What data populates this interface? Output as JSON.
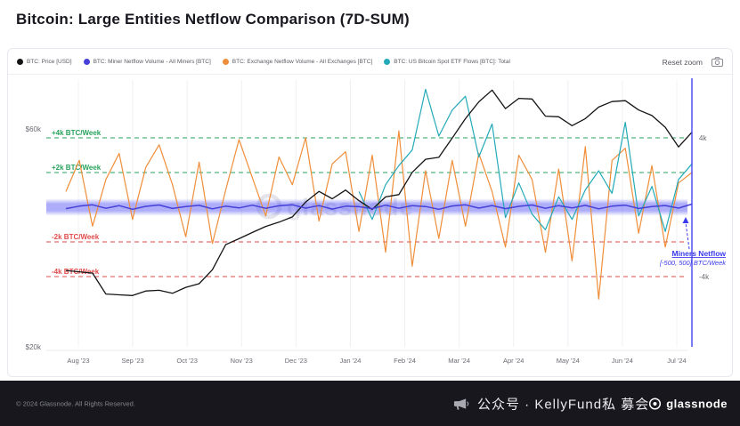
{
  "page": {
    "title": "Bitcoin: Large Entities Netflow Comparison (7D-SUM)"
  },
  "toolbar": {
    "reset_zoom": "Reset zoom"
  },
  "legend": {
    "items": [
      {
        "label": "BTC: Price [USD]",
        "color": "#141414"
      },
      {
        "label": "BTC: Miner Netflow Volume - All Miners [BTC]",
        "color": "#4640d8"
      },
      {
        "label": "BTC: Exchange Netflow Volume - All Exchanges [BTC]",
        "color": "#ef8e3a"
      },
      {
        "label": "BTC: US Bitcoin Spot ETF Flows [BTC]: Total",
        "color": "#23aab8"
      }
    ]
  },
  "watermark": {
    "text": "glassnode"
  },
  "footer": {
    "copyright": "© 2024 Glassnode. All Rights Reserved.",
    "channel": "公众号 · KellyFund私 募会",
    "brand": "glassnode"
  },
  "chart_data": {
    "type": "line",
    "title": "Bitcoin: Large Entities Netflow Comparison (7D-SUM)",
    "x_ticks": [
      "Aug '23",
      "Sep '23",
      "Oct '23",
      "Nov '23",
      "Dec '23",
      "Jan '24",
      "Feb '24",
      "Mar '24",
      "Apr '24",
      "May '24",
      "Jun '24",
      "Jul '24"
    ],
    "left_axis": {
      "scale": "log",
      "unit": "USD",
      "ticks": [
        {
          "label": "$60k",
          "value": 60000
        },
        {
          "label": "$20k",
          "value": 20000
        }
      ]
    },
    "right_axis": {
      "unit": "BTC/Week",
      "ticks": [
        {
          "label": "4k",
          "value": 4000
        },
        {
          "label": "-4k",
          "value": -4000
        }
      ]
    },
    "reference_lines": [
      {
        "label": "+4k BTC/Week",
        "value": 4000,
        "color": "#27a35c"
      },
      {
        "label": "+2k BTC/Week",
        "value": 2000,
        "color": "#27a35c"
      },
      {
        "label": "-2k BTC/Week",
        "value": -2000,
        "color": "#e14b4b"
      },
      {
        "label": "-4k BTC/Week",
        "value": -4000,
        "color": "#e14b4b"
      }
    ],
    "band": {
      "min": -500,
      "max": 500,
      "color": "#5b5bf5"
    },
    "annotation": {
      "line1": "Miners Netflow",
      "line2": "[-500, 500] BTC/Week",
      "color": "#3b3bec"
    },
    "crosshair_color": "#4444f0",
    "series": [
      {
        "name": "BTC: Price [USD]",
        "axis": "left",
        "color": "#141414",
        "values": [
          29400,
          29200,
          29000,
          26100,
          26000,
          25900,
          26500,
          26600,
          26200,
          27000,
          27500,
          29500,
          33500,
          34500,
          35600,
          36700,
          37500,
          38500,
          41500,
          43800,
          42200,
          44100,
          41800,
          40000,
          42600,
          43100,
          48200,
          51500,
          52000,
          57300,
          63200,
          68800,
          73000,
          66500,
          70000,
          69800,
          64000,
          63800,
          61000,
          63200,
          67000,
          68900,
          69200,
          66000,
          64200,
          60500,
          54800,
          59000
        ]
      },
      {
        "name": "BTC: Miner Netflow Volume - All Miners [BTC]",
        "axis": "right",
        "color": "#4640d8",
        "values": [
          -80,
          60,
          140,
          -60,
          90,
          -120,
          50,
          130,
          -70,
          40,
          110,
          -90,
          60,
          -40,
          120,
          -60,
          80,
          140,
          -50,
          90,
          -110,
          60,
          30,
          -80,
          120,
          -60,
          90,
          40,
          -120,
          70,
          140,
          -50,
          100,
          -80,
          50,
          130,
          -60,
          90,
          -40,
          110,
          -90,
          60,
          120,
          -70,
          40,
          100,
          -50,
          180
        ]
      },
      {
        "name": "BTC: Exchange Netflow Volume - All Exchanges [BTC]",
        "axis": "right",
        "color": "#ef8e3a",
        "values": [
          900,
          2700,
          -1100,
          1600,
          3100,
          -700,
          2300,
          3600,
          1300,
          -1700,
          2600,
          -2100,
          1000,
          3900,
          1700,
          -500,
          2900,
          1300,
          4000,
          -800,
          2500,
          3200,
          -1400,
          3000,
          -2600,
          4400,
          -3400,
          2100,
          -1800,
          2700,
          -1100,
          3100,
          900,
          -2300,
          3000,
          1600,
          -2600,
          2200,
          -3100,
          3500,
          -5300,
          2700,
          3400,
          -1500,
          2400,
          -2300,
          1400,
          2000
        ]
      },
      {
        "name": "BTC: US Bitcoin Spot ETF Flows [BTC]: Total",
        "axis": "right",
        "color": "#23aab8",
        "values": [
          null,
          null,
          null,
          null,
          null,
          null,
          null,
          null,
          null,
          null,
          null,
          null,
          null,
          null,
          null,
          null,
          null,
          null,
          null,
          null,
          null,
          null,
          900,
          -700,
          1300,
          2400,
          3300,
          6800,
          4100,
          5600,
          6400,
          2900,
          4800,
          -600,
          1400,
          -400,
          -1300,
          600,
          -700,
          1000,
          2100,
          800,
          4900,
          -500,
          1200,
          -1400,
          1600,
          2500
        ]
      }
    ]
  }
}
